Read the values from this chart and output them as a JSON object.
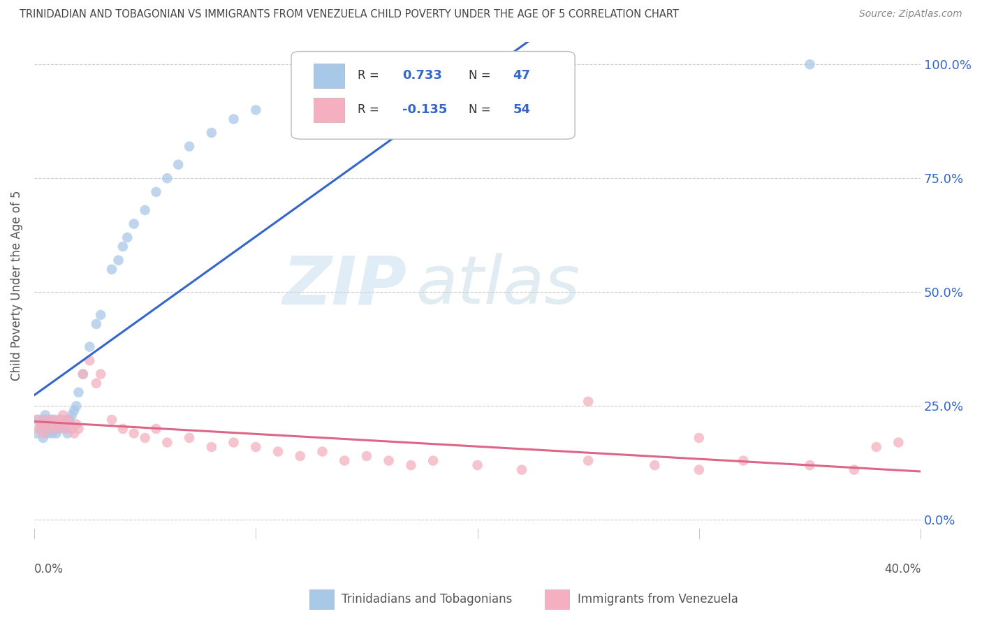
{
  "title": "TRINIDADIAN AND TOBAGONIAN VS IMMIGRANTS FROM VENEZUELA CHILD POVERTY UNDER THE AGE OF 5 CORRELATION CHART",
  "source": "Source: ZipAtlas.com",
  "ylabel": "Child Poverty Under the Age of 5",
  "ytick_labels": [
    "0.0%",
    "25.0%",
    "50.0%",
    "75.0%",
    "100.0%"
  ],
  "ytick_values": [
    0.0,
    0.25,
    0.5,
    0.75,
    1.0
  ],
  "xlim": [
    0.0,
    0.4
  ],
  "ylim": [
    -0.02,
    1.05
  ],
  "legend_label1": "Trinidadians and Tobagonians",
  "legend_label2": "Immigrants from Venezuela",
  "R1": 0.733,
  "N1": 47,
  "R2": -0.135,
  "N2": 54,
  "color1": "#a8c8e8",
  "color2": "#f4b0c0",
  "line_color1": "#3366cc",
  "line_color2": "#dd6688",
  "blue_scatter_x": [
    0.001,
    0.002,
    0.003,
    0.003,
    0.004,
    0.004,
    0.005,
    0.005,
    0.006,
    0.006,
    0.007,
    0.007,
    0.008,
    0.008,
    0.009,
    0.009,
    0.01,
    0.01,
    0.011,
    0.012,
    0.013,
    0.014,
    0.015,
    0.015,
    0.016,
    0.017,
    0.018,
    0.019,
    0.02,
    0.022,
    0.025,
    0.028,
    0.03,
    0.035,
    0.038,
    0.04,
    0.042,
    0.045,
    0.05,
    0.055,
    0.06,
    0.065,
    0.07,
    0.08,
    0.09,
    0.1,
    0.35
  ],
  "blue_scatter_y": [
    0.19,
    0.22,
    0.2,
    0.21,
    0.18,
    0.22,
    0.2,
    0.23,
    0.19,
    0.21,
    0.2,
    0.22,
    0.19,
    0.21,
    0.2,
    0.22,
    0.19,
    0.21,
    0.2,
    0.22,
    0.21,
    0.2,
    0.22,
    0.19,
    0.22,
    0.23,
    0.24,
    0.25,
    0.28,
    0.32,
    0.38,
    0.43,
    0.45,
    0.55,
    0.57,
    0.6,
    0.62,
    0.65,
    0.68,
    0.72,
    0.75,
    0.78,
    0.82,
    0.85,
    0.88,
    0.9,
    1.0
  ],
  "pink_scatter_x": [
    0.001,
    0.002,
    0.003,
    0.004,
    0.005,
    0.006,
    0.007,
    0.008,
    0.009,
    0.01,
    0.011,
    0.012,
    0.013,
    0.014,
    0.015,
    0.016,
    0.017,
    0.018,
    0.019,
    0.02,
    0.022,
    0.025,
    0.028,
    0.03,
    0.035,
    0.04,
    0.045,
    0.05,
    0.055,
    0.06,
    0.07,
    0.08,
    0.09,
    0.1,
    0.11,
    0.12,
    0.13,
    0.14,
    0.15,
    0.16,
    0.17,
    0.18,
    0.2,
    0.22,
    0.25,
    0.28,
    0.3,
    0.32,
    0.35,
    0.37,
    0.38,
    0.39,
    0.25,
    0.3
  ],
  "pink_scatter_y": [
    0.22,
    0.2,
    0.21,
    0.19,
    0.22,
    0.21,
    0.2,
    0.22,
    0.21,
    0.2,
    0.22,
    0.21,
    0.23,
    0.2,
    0.22,
    0.21,
    0.2,
    0.19,
    0.21,
    0.2,
    0.32,
    0.35,
    0.3,
    0.32,
    0.22,
    0.2,
    0.19,
    0.18,
    0.2,
    0.17,
    0.18,
    0.16,
    0.17,
    0.16,
    0.15,
    0.14,
    0.15,
    0.13,
    0.14,
    0.13,
    0.12,
    0.13,
    0.12,
    0.11,
    0.13,
    0.12,
    0.11,
    0.13,
    0.12,
    0.11,
    0.16,
    0.17,
    0.26,
    0.18
  ]
}
